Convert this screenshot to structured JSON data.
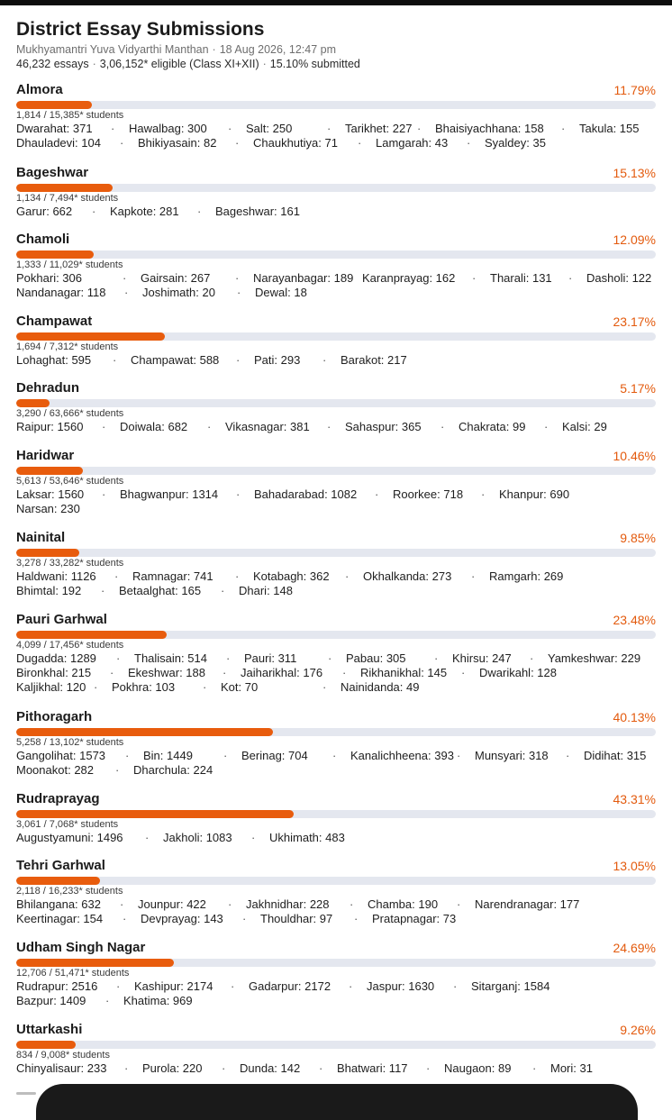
{
  "header": {
    "title": "District Essay Submissions",
    "program": "Mukhyamantri Yuva Vidyarthi Manthan",
    "datetime": "18 Aug 2026, 12:47 pm",
    "essays": "46,232 essays",
    "eligible": "3,06,152* eligible (Class XI+XII)",
    "submitted": "15.10% submitted"
  },
  "colors": {
    "accent": "#e85c0d",
    "track": "#e4e7ef"
  },
  "districts": [
    {
      "name": "Almora",
      "percent": "11.79%",
      "fraction": 0.1179,
      "students": "1,814 / 15,385* students",
      "blocks": [
        [
          "Dwarahat: 371",
          "Hawalbag: 300",
          "Salt: 250",
          "Tarikhet: 227",
          "Bhaisiyachhana: 158",
          "Takula: 155"
        ],
        [
          "Dhauladevi: 104",
          "Bhikiyasain: 82",
          "Chaukhutiya: 71",
          "Lamgarah: 43",
          "Syaldey: 35"
        ]
      ]
    },
    {
      "name": "Bageshwar",
      "percent": "15.13%",
      "fraction": 0.1513,
      "students": "1,134 / 7,494* students",
      "blocks": [
        [
          "Garur: 662",
          "Kapkote: 281",
          "Bageshwar: 161"
        ]
      ]
    },
    {
      "name": "Chamoli",
      "percent": "12.09%",
      "fraction": 0.1209,
      "students": "1,333 / 11,029* students",
      "blocks": [
        [
          "Pokhari: 306",
          "Gairsain: 267",
          "Narayanbagar: 189",
          "Karanprayag: 162",
          "Tharali: 131",
          "Dasholi: 122"
        ],
        [
          "Nandanagar: 118",
          "Joshimath: 20",
          "Dewal: 18"
        ]
      ]
    },
    {
      "name": "Champawat",
      "percent": "23.17%",
      "fraction": 0.2317,
      "students": "1,694 / 7,312* students",
      "blocks": [
        [
          "Lohaghat: 595",
          "Champawat: 588",
          "Pati: 293",
          "Barakot: 217"
        ]
      ]
    },
    {
      "name": "Dehradun",
      "percent": "5.17%",
      "fraction": 0.0517,
      "students": "3,290 / 63,666* students",
      "blocks": [
        [
          "Raipur: 1560",
          "Doiwala: 682",
          "Vikasnagar: 381",
          "Sahaspur: 365",
          "Chakrata: 99",
          "Kalsi: 29"
        ]
      ]
    },
    {
      "name": "Haridwar",
      "percent": "10.46%",
      "fraction": 0.1046,
      "students": "5,613 / 53,646* students",
      "blocks": [
        [
          "Laksar: 1560",
          "Bhagwanpur: 1314",
          "Bahadarabad: 1082",
          "Roorkee: 718",
          "Khanpur: 690"
        ],
        [
          "Narsan: 230"
        ]
      ]
    },
    {
      "name": "Nainital",
      "percent": "9.85%",
      "fraction": 0.0985,
      "students": "3,278 / 33,282* students",
      "blocks": [
        [
          "Haldwani: 1126",
          "Ramnagar: 741",
          "Kotabagh: 362",
          "Okhalkanda: 273",
          "Ramgarh: 269"
        ],
        [
          "Bhimtal: 192",
          "Betaalghat: 165",
          "Dhari: 148"
        ]
      ]
    },
    {
      "name": "Pauri Garhwal",
      "percent": "23.48%",
      "fraction": 0.2348,
      "students": "4,099 / 17,456* students",
      "blocks": [
        [
          "Dugadda: 1289",
          "Thalisain: 514",
          "Pauri: 311",
          "Pabau: 305",
          "Khirsu: 247",
          "Yamkeshwar: 229"
        ],
        [
          "Bironkhal: 215",
          "Ekeshwar: 188",
          "Jaiharikhal: 176",
          "Rikhanikhal: 145",
          "Dwarikahl: 128"
        ],
        [
          "Kaljikhal: 120",
          "Pokhra: 103",
          "Kot: 70",
          "Nainidanda: 49"
        ]
      ]
    },
    {
      "name": "Pithoragarh",
      "percent": "40.13%",
      "fraction": 0.4013,
      "students": "5,258 / 13,102* students",
      "blocks": [
        [
          "Gangolihat: 1573",
          "Bin: 1449",
          "Berinag: 704",
          "Kanalichheena: 393",
          "Munsyari: 318",
          "Didihat: 315"
        ],
        [
          "Moonakot: 282",
          "Dharchula: 224"
        ]
      ]
    },
    {
      "name": "Rudraprayag",
      "percent": "43.31%",
      "fraction": 0.4331,
      "students": "3,061 / 7,068* students",
      "blocks": [
        [
          "Augustyamuni: 1496",
          "Jakholi: 1083",
          "Ukhimath: 483"
        ]
      ]
    },
    {
      "name": "Tehri Garhwal",
      "percent": "13.05%",
      "fraction": 0.1305,
      "students": "2,118 / 16,233* students",
      "blocks": [
        [
          "Bhilangana: 632",
          "Jounpur: 422",
          "Jakhnidhar: 228",
          "Chamba: 190",
          "Narendranagar: 177"
        ],
        [
          "Keertinagar: 154",
          "Devprayag: 143",
          "Thouldhar: 97",
          "Pratapnagar: 73"
        ]
      ]
    },
    {
      "name": "Udham Singh Nagar",
      "percent": "24.69%",
      "fraction": 0.2469,
      "students": "12,706 / 51,471* students",
      "blocks": [
        [
          "Rudrapur: 2516",
          "Kashipur: 2174",
          "Gadarpur: 2172",
          "Jaspur: 1630",
          "Sitarganj: 1584"
        ],
        [
          "Bazpur: 1409",
          "Khatima: 969"
        ]
      ]
    },
    {
      "name": "Uttarkashi",
      "percent": "9.26%",
      "fraction": 0.0926,
      "students": "834 / 9,008* students",
      "blocks": [
        [
          "Chinyalisaur: 233",
          "Purola: 220",
          "Dunda: 142",
          "Bhatwari: 117",
          "Naugaon: 89",
          "Mori: 31"
        ]
      ]
    }
  ]
}
